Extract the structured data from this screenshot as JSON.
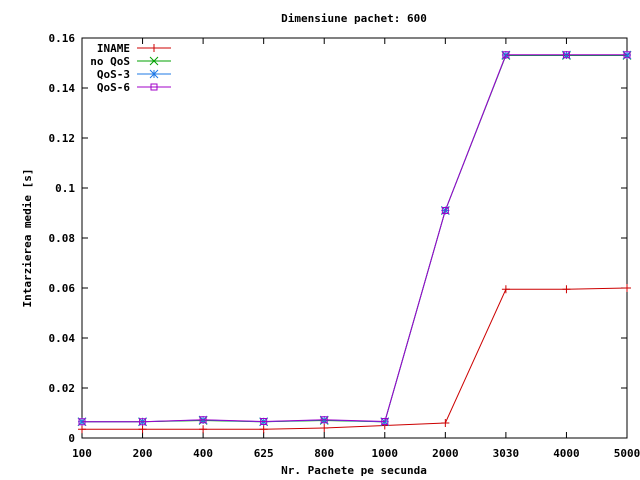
{
  "chart_data": {
    "type": "line",
    "title": "Dimensiune pachet: 600",
    "xlabel": "Nr. Pachete pe secunda",
    "ylabel": "Intarzierea medie [s]",
    "categories": [
      "100",
      "200",
      "400",
      "625",
      "800",
      "1000",
      "2000",
      "3030",
      "4000",
      "5000"
    ],
    "ylim": [
      0,
      0.16
    ],
    "yticks": [
      "0",
      "0.02",
      "0.04",
      "0.06",
      "0.08",
      "0.1",
      "0.12",
      "0.14",
      "0.16"
    ],
    "grid": false,
    "legend_position": "top-left",
    "series": [
      {
        "name": "INAME",
        "color": "#cc0000",
        "marker": "plus",
        "values": [
          0.0035,
          0.0035,
          0.0035,
          0.0035,
          0.004,
          0.005,
          0.006,
          0.0595,
          0.0595,
          0.06
        ]
      },
      {
        "name": "no QoS",
        "color": "#00a000",
        "marker": "cross",
        "values": [
          0.0065,
          0.0065,
          0.007,
          0.0065,
          0.007,
          0.0065,
          0.091,
          0.153,
          0.153,
          0.153
        ]
      },
      {
        "name": "QoS-3",
        "color": "#1e78e6",
        "marker": "asterisk",
        "values": [
          0.0065,
          0.0065,
          0.0072,
          0.0065,
          0.0072,
          0.0065,
          0.091,
          0.1532,
          0.1532,
          0.1532
        ]
      },
      {
        "name": "QoS-6",
        "color": "#a000c8",
        "marker": "square",
        "values": [
          0.0065,
          0.0065,
          0.0073,
          0.0066,
          0.0073,
          0.0066,
          0.091,
          0.1533,
          0.1533,
          0.1533
        ]
      }
    ]
  }
}
